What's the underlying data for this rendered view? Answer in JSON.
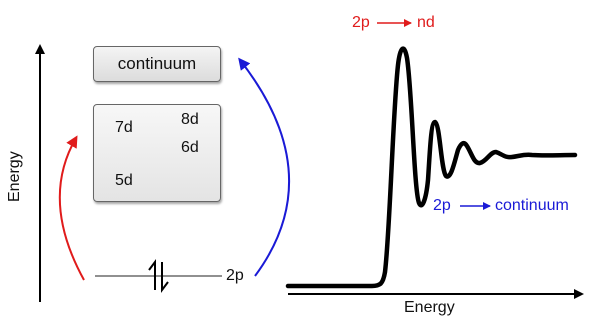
{
  "energy_axis_label": "Energy",
  "continuum_label": "continuum",
  "levels": {
    "l7d": "7d",
    "l8d": "8d",
    "l6d": "6d",
    "l5d": "5d"
  },
  "core_level": "2p",
  "transition_nd": {
    "from": "2p",
    "to": "nd",
    "color": "#e01b1b"
  },
  "transition_continuum": {
    "from": "2p",
    "to": "continuum",
    "color": "#1a1ad6"
  },
  "spectrum_x_label": "Energy"
}
